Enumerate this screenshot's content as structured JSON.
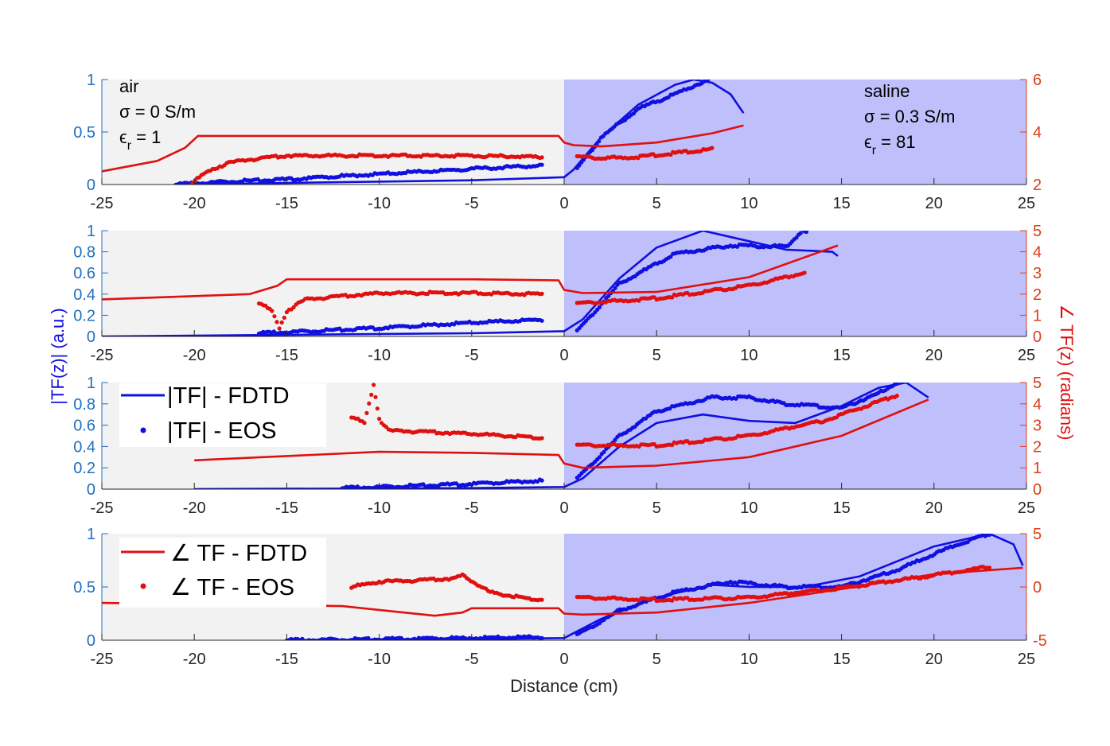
{
  "colors": {
    "left_axis": "#1f6fbf",
    "right_axis": "#d9401a",
    "fdtd_mag": "#1010e0",
    "fdtd_phase": "#e01010",
    "air_bg": "#f2f2f2",
    "saline_bg": "#bfbffb"
  },
  "figure": {
    "xlabel": "Distance (cm)",
    "ylabel_left": "|TF(z)| (a.u.)",
    "ylabel_right": "∠ TF(z) (radians)"
  },
  "annotations": {
    "air": {
      "line1": "air",
      "line2": "σ = 0 S/m",
      "line3": "ϵ",
      "sub": "r",
      "value": " = 1"
    },
    "saline": {
      "line1": "saline",
      "line2": "σ = 0.3 S/m",
      "line3": "ϵ",
      "sub": "r",
      "value": " = 81"
    }
  },
  "legends": {
    "magnitude": {
      "fdtd": "|TF| - FDTD",
      "eos": "|TF| - EOS"
    },
    "phase": {
      "fdtd": "∠ TF - FDTD",
      "eos": "∠ TF - EOS"
    }
  },
  "chart_data": [
    {
      "type": "line",
      "xlim": [
        -25,
        25
      ],
      "xticks": [
        "-25",
        "-20",
        "-15",
        "-10",
        "-5",
        "0",
        "5",
        "10",
        "15",
        "20",
        "25"
      ],
      "ylim_left": [
        0,
        1
      ],
      "yticks_left": [
        "0",
        "0.5",
        "1"
      ],
      "ylim_right": [
        2,
        6
      ],
      "yticks_right": [
        "2",
        "4",
        "6"
      ],
      "series": [
        {
          "name": "|TF| - FDTD",
          "axis": "left",
          "style": "line",
          "color": "#1010e0",
          "x": [
            -21,
            -5,
            0,
            0.5,
            2,
            4,
            6,
            7,
            8,
            9,
            9.7
          ],
          "y": [
            0,
            0.04,
            0.07,
            0.14,
            0.45,
            0.76,
            0.95,
            1.0,
            0.97,
            0.86,
            0.68
          ]
        },
        {
          "name": "|TF| - EOS",
          "axis": "left",
          "style": "dots",
          "color": "#1010e0",
          "x": [
            -21,
            -18,
            -15,
            -10,
            -5,
            -1.2
          ],
          "y": [
            0,
            0.03,
            0.05,
            0.1,
            0.15,
            0.18
          ],
          "x2": [
            0.7,
            2,
            4,
            6,
            7.8
          ],
          "y2": [
            0.15,
            0.45,
            0.72,
            0.86,
            1.0
          ]
        },
        {
          "name": "∠ TF - FDTD",
          "axis": "right",
          "style": "line",
          "color": "#e01010",
          "x": [
            -25,
            -22,
            -20.5,
            -19.8,
            -15,
            -5,
            -0.3,
            0,
            0.5,
            2,
            5,
            8,
            9.7
          ],
          "y": [
            2.5,
            2.9,
            3.4,
            3.85,
            3.85,
            3.85,
            3.85,
            3.6,
            3.5,
            3.45,
            3.6,
            3.95,
            4.25
          ]
        },
        {
          "name": "∠ TF - EOS",
          "axis": "right",
          "style": "dots",
          "color": "#e01010",
          "x": [
            -20.2,
            -19.5,
            -19,
            -18,
            -17,
            -15,
            -10,
            -5,
            -1.2
          ],
          "y": [
            2,
            2.4,
            2.6,
            2.85,
            2.95,
            3.1,
            3.1,
            3.1,
            3.05
          ],
          "x2": [
            0.7,
            2,
            4,
            6,
            8
          ],
          "y2": [
            3.05,
            3.0,
            3.05,
            3.2,
            3.35
          ]
        }
      ]
    },
    {
      "type": "line",
      "xlim": [
        -25,
        25
      ],
      "xticks": [
        "-25",
        "-20",
        "-15",
        "-10",
        "-5",
        "0",
        "5",
        "10",
        "15",
        "20",
        "25"
      ],
      "ylim_left": [
        0,
        1
      ],
      "yticks_left": [
        "0",
        "0.2",
        "0.4",
        "0.6",
        "0.8",
        "1"
      ],
      "ylim_right": [
        0,
        5
      ],
      "yticks_right": [
        "0",
        "1",
        "2",
        "3",
        "4",
        "5"
      ],
      "series": [
        {
          "name": "|TF| - FDTD",
          "axis": "left",
          "style": "line",
          "color": "#1010e0",
          "x": [
            -25,
            -5,
            0,
            1,
            3,
            5,
            7.5,
            10,
            12,
            14.5,
            14.8
          ],
          "y": [
            0,
            0.03,
            0.05,
            0.16,
            0.55,
            0.84,
            1.0,
            0.9,
            0.82,
            0.8,
            0.76
          ]
        },
        {
          "name": "|TF| - EOS",
          "axis": "left",
          "style": "dots",
          "color": "#1010e0",
          "x": [
            -16.5,
            -15,
            -10,
            -5,
            -1.2
          ],
          "y": [
            0.03,
            0.04,
            0.08,
            0.13,
            0.16
          ],
          "x2": [
            0.7,
            3,
            6,
            9,
            12,
            12.9,
            13.1
          ],
          "y2": [
            0.05,
            0.5,
            0.78,
            0.86,
            0.85,
            1.0,
            0.98
          ]
        },
        {
          "name": "∠ TF - FDTD",
          "axis": "right",
          "style": "line",
          "color": "#e01010",
          "x": [
            -25,
            -17,
            -15.5,
            -15,
            -5,
            -0.3,
            0,
            1,
            5,
            10,
            14.8
          ],
          "y": [
            1.75,
            2.0,
            2.4,
            2.7,
            2.7,
            2.65,
            2.2,
            2.05,
            2.1,
            2.8,
            4.3
          ]
        },
        {
          "name": "∠ TF - EOS",
          "axis": "right",
          "style": "dots",
          "color": "#e01010",
          "x": [
            -16.5,
            -15.8,
            -15.4,
            -15,
            -14,
            -10,
            -5,
            -1.2
          ],
          "y": [
            1.6,
            1.2,
            0.4,
            1.2,
            1.75,
            2.05,
            2.05,
            2.0
          ],
          "x2": [
            0.7,
            5,
            10,
            13
          ],
          "y2": [
            1.55,
            1.8,
            2.4,
            3.0
          ]
        }
      ]
    },
    {
      "type": "line",
      "xlim": [
        -25,
        25
      ],
      "xticks": [
        "-25",
        "-20",
        "-15",
        "-10",
        "-5",
        "0",
        "5",
        "10",
        "15",
        "20",
        "25"
      ],
      "ylim_left": [
        0,
        1
      ],
      "yticks_left": [
        "0",
        "0.2",
        "0.4",
        "0.6",
        "0.8",
        "1"
      ],
      "ylim_right": [
        0,
        5
      ],
      "yticks_right": [
        "0",
        "1",
        "2",
        "3",
        "4",
        "5"
      ],
      "series": [
        {
          "name": "|TF| - FDTD",
          "axis": "left",
          "style": "line",
          "color": "#1010e0",
          "x": [
            -20,
            -5,
            0,
            1,
            3,
            5,
            7.5,
            10,
            12.5,
            15,
            17,
            18.5,
            19.7
          ],
          "y": [
            0,
            0.01,
            0.02,
            0.1,
            0.4,
            0.62,
            0.7,
            0.64,
            0.62,
            0.78,
            0.95,
            1.0,
            0.86
          ]
        },
        {
          "name": "|TF| - EOS",
          "axis": "left",
          "style": "dots",
          "color": "#1010e0",
          "x": [
            -12,
            -10,
            -5,
            -1.2
          ],
          "y": [
            0.01,
            0.02,
            0.05,
            0.08
          ],
          "x2": [
            0.7,
            3,
            5,
            8,
            10,
            12,
            15,
            17,
            18
          ],
          "y2": [
            0.1,
            0.5,
            0.73,
            0.86,
            0.86,
            0.8,
            0.76,
            0.9,
            1.0
          ]
        },
        {
          "name": "∠ TF - FDTD",
          "axis": "right",
          "style": "line",
          "color": "#e01010",
          "x": [
            -20,
            -10,
            -5,
            -0.3,
            0,
            1,
            5,
            10,
            15,
            19.7
          ],
          "y": [
            1.35,
            1.75,
            1.7,
            1.6,
            1.2,
            1.0,
            1.1,
            1.5,
            2.5,
            4.2
          ]
        },
        {
          "name": "∠ TF - EOS",
          "axis": "right",
          "style": "dots",
          "color": "#e01010",
          "x": [
            -11.5,
            -10.8,
            -10.3,
            -10,
            -9.5,
            -5,
            -1.2
          ],
          "y": [
            3.4,
            3.1,
            4.9,
            3.3,
            2.75,
            2.6,
            2.4
          ],
          "x2": [
            0.7,
            5,
            10,
            14,
            18
          ],
          "y2": [
            2.05,
            2.05,
            2.5,
            3.2,
            4.4
          ]
        }
      ]
    },
    {
      "type": "line",
      "xlim": [
        -25,
        25
      ],
      "xticks": [
        "-25",
        "-20",
        "-15",
        "-10",
        "-5",
        "0",
        "5",
        "10",
        "15",
        "20",
        "25"
      ],
      "ylim_left": [
        0,
        1
      ],
      "yticks_left": [
        "0",
        "0.5",
        "1"
      ],
      "ylim_right": [
        -5,
        5
      ],
      "yticks_right": [
        "-5",
        "0",
        "5"
      ],
      "series": [
        {
          "name": "|TF| - FDTD",
          "axis": "left",
          "style": "line",
          "color": "#1010e0",
          "x": [
            -15,
            -5,
            0,
            2,
            5,
            8,
            10,
            13,
            16,
            20,
            23,
            24.3,
            24.8
          ],
          "y": [
            0,
            0.01,
            0.02,
            0.2,
            0.4,
            0.52,
            0.5,
            0.5,
            0.6,
            0.88,
            1.0,
            0.9,
            0.7
          ]
        },
        {
          "name": "|TF| - EOS",
          "axis": "left",
          "style": "dots",
          "color": "#1010e0",
          "x": [
            -15,
            -10,
            -5,
            -1.2
          ],
          "y": [
            0,
            0.01,
            0.02,
            0.03
          ],
          "x2": [
            0.7,
            3,
            6,
            9,
            12,
            15,
            18,
            21,
            23
          ],
          "y2": [
            0.05,
            0.28,
            0.45,
            0.55,
            0.5,
            0.5,
            0.66,
            0.88,
            1.0
          ]
        },
        {
          "name": "∠ TF - FDTD",
          "axis": "right",
          "style": "line",
          "color": "#e01010",
          "x": [
            -25,
            -12,
            -7,
            -5.5,
            -5,
            -0.3,
            0,
            1,
            5,
            10,
            15,
            20,
            24.8
          ],
          "y": [
            -1.5,
            -1.8,
            -2.7,
            -2.4,
            -2.0,
            -2.0,
            -2.5,
            -2.6,
            -2.4,
            -1.5,
            -0.2,
            1.2,
            1.8
          ]
        },
        {
          "name": "∠ TF - EOS",
          "axis": "right",
          "style": "dots",
          "color": "#e01010",
          "x": [
            -11.5,
            -10,
            -8,
            -6,
            -5.5,
            -4,
            -2,
            -1.2
          ],
          "y": [
            0,
            0.5,
            0.6,
            0.8,
            1.1,
            -0.5,
            -1.1,
            -1.2
          ],
          "x2": [
            0.7,
            5,
            10,
            15,
            20,
            23
          ],
          "y2": [
            -1.0,
            -1.2,
            -1.0,
            -0.1,
            1.1,
            1.9
          ]
        }
      ]
    }
  ]
}
